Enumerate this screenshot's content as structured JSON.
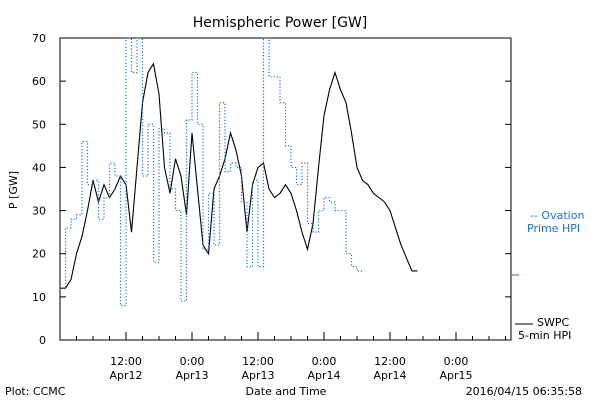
{
  "chart_data": {
    "type": "line",
    "title": "Hemispheric Power [GW]",
    "xlabel": "Date and Time",
    "ylabel": "P [GW]",
    "ylim": [
      0,
      70
    ],
    "yticks": [
      0,
      10,
      20,
      30,
      40,
      50,
      60,
      70
    ],
    "xlim": [
      0,
      82
    ],
    "xticks": [
      {
        "x": 12,
        "time": "12:00",
        "date": "Apr12"
      },
      {
        "x": 24,
        "time": "0:00",
        "date": "Apr13"
      },
      {
        "x": 36,
        "time": "12:00",
        "date": "Apr13"
      },
      {
        "x": 48,
        "time": "0:00",
        "date": "Apr14"
      },
      {
        "x": 60,
        "time": "12:00",
        "date": "Apr14"
      },
      {
        "x": 72,
        "time": "0:00",
        "date": "Apr15"
      }
    ],
    "grid": false,
    "legend_position": "right",
    "footer_left": "Plot: CCMC",
    "footer_right": "2016/04/15 06:35:58",
    "colors": {
      "swpc": "#000000",
      "ovation": "#1a6fd6"
    },
    "series": [
      {
        "name": "SWPC",
        "name2": "5-min HPI",
        "style": "solid",
        "points": [
          [
            0,
            12
          ],
          [
            1,
            12
          ],
          [
            2,
            14
          ],
          [
            3,
            20
          ],
          [
            4,
            24
          ],
          [
            5,
            30
          ],
          [
            6,
            37
          ],
          [
            7,
            32
          ],
          [
            8,
            36
          ],
          [
            9,
            33
          ],
          [
            10,
            35
          ],
          [
            11,
            38
          ],
          [
            12,
            36
          ],
          [
            13,
            25
          ],
          [
            14,
            40
          ],
          [
            15,
            55
          ],
          [
            16,
            62
          ],
          [
            17,
            64
          ],
          [
            18,
            57
          ],
          [
            19,
            40
          ],
          [
            20,
            34
          ],
          [
            21,
            42
          ],
          [
            22,
            38
          ],
          [
            23,
            29
          ],
          [
            24,
            48
          ],
          [
            25,
            35
          ],
          [
            26,
            22
          ],
          [
            27,
            20
          ],
          [
            28,
            35
          ],
          [
            29,
            38
          ],
          [
            30,
            42
          ],
          [
            31,
            48
          ],
          [
            32,
            44
          ],
          [
            33,
            38
          ],
          [
            34,
            25
          ],
          [
            35,
            36
          ],
          [
            36,
            40
          ],
          [
            37,
            41
          ],
          [
            38,
            35
          ],
          [
            39,
            33
          ],
          [
            40,
            34
          ],
          [
            41,
            36
          ],
          [
            42,
            34
          ],
          [
            43,
            30
          ],
          [
            44,
            25
          ],
          [
            45,
            21
          ],
          [
            46,
            27
          ],
          [
            47,
            40
          ],
          [
            48,
            52
          ],
          [
            49,
            58
          ],
          [
            50,
            62
          ],
          [
            51,
            58
          ],
          [
            52,
            55
          ],
          [
            53,
            48
          ],
          [
            54,
            40
          ],
          [
            55,
            37
          ],
          [
            56,
            36
          ],
          [
            57,
            34
          ],
          [
            58,
            33
          ],
          [
            59,
            32
          ],
          [
            60,
            30
          ],
          [
            61,
            26
          ],
          [
            62,
            22
          ],
          [
            63,
            19
          ],
          [
            64,
            16
          ],
          [
            65,
            16
          ]
        ]
      },
      {
        "name": "-- Ovation",
        "name2": "Prime HPI",
        "style": "step-dotted",
        "points": [
          [
            0,
            12
          ],
          [
            1,
            26
          ],
          [
            2,
            28
          ],
          [
            3,
            29
          ],
          [
            4,
            46
          ],
          [
            5,
            36
          ],
          [
            6,
            37
          ],
          [
            7,
            28
          ],
          [
            8,
            33
          ],
          [
            9,
            41
          ],
          [
            10,
            38
          ],
          [
            11,
            8
          ],
          [
            12,
            70
          ],
          [
            13,
            62
          ],
          [
            14,
            70
          ],
          [
            15,
            38
          ],
          [
            16,
            50
          ],
          [
            17,
            18
          ],
          [
            18,
            49
          ],
          [
            19,
            48
          ],
          [
            20,
            35
          ],
          [
            21,
            30
          ],
          [
            22,
            9
          ],
          [
            23,
            51
          ],
          [
            24,
            62
          ],
          [
            25,
            50
          ],
          [
            26,
            21
          ],
          [
            27,
            34
          ],
          [
            28,
            22
          ],
          [
            29,
            55
          ],
          [
            30,
            39
          ],
          [
            31,
            41
          ],
          [
            32,
            40
          ],
          [
            33,
            32
          ],
          [
            34,
            17
          ],
          [
            35,
            37
          ],
          [
            36,
            17
          ],
          [
            37,
            70
          ],
          [
            38,
            61
          ],
          [
            39,
            61
          ],
          [
            40,
            55
          ],
          [
            41,
            45
          ],
          [
            42,
            40
          ],
          [
            43,
            36
          ],
          [
            44,
            41
          ],
          [
            45,
            27
          ],
          [
            46,
            25
          ],
          [
            47,
            30
          ],
          [
            48,
            33
          ],
          [
            49,
            32
          ],
          [
            50,
            30
          ],
          [
            51,
            30
          ],
          [
            52,
            20
          ],
          [
            53,
            17
          ],
          [
            54,
            16
          ]
        ]
      }
    ]
  }
}
